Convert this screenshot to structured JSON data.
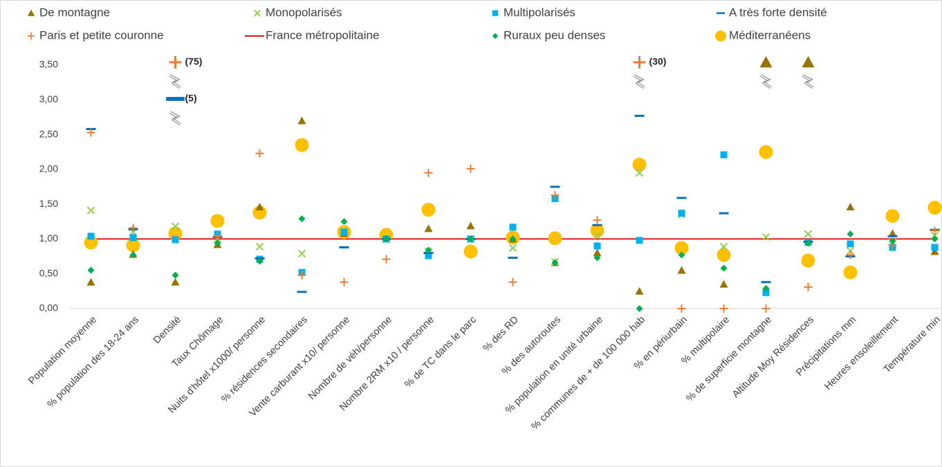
{
  "chart_data": {
    "type": "scatter",
    "categories": [
      "Population moyenne",
      "% population des 18-24 ans",
      "Densité",
      "Taux Chômage",
      "Nuits d'hôtel x1000/ personne",
      "% résidences secondaires",
      "Vente carburant x10/ personne",
      "Nombre de véh/personne",
      "Nombre 2RM x10 / personne",
      "% de TC dans le parc",
      "% des RD",
      "% des autoroutes",
      "% population en unité urbaine",
      "% communes de +  de 100 000 hab",
      "% en périurbain",
      "% multipolaire",
      "% de superficie montagne",
      "Altitude Moy Résidences",
      "Précipitations mm",
      "Heures ensoleillement",
      "Température min"
    ],
    "ylim": [
      0,
      3.5
    ],
    "yticks": [
      {
        "value": 0,
        "label": "0,00"
      },
      {
        "value": 0.5,
        "label": "0,50"
      },
      {
        "value": 1,
        "label": "1,00"
      },
      {
        "value": 1.5,
        "label": "1,50"
      },
      {
        "value": 2,
        "label": "2,00"
      },
      {
        "value": 2.5,
        "label": "2,50"
      },
      {
        "value": 3,
        "label": "3,00"
      },
      {
        "value": 3.5,
        "label": "3,50"
      }
    ],
    "grid": false,
    "series": [
      {
        "name": "De montagne",
        "color": "#997300",
        "marker": "triangle",
        "values": [
          0.38,
          0.78,
          0.38,
          0.92,
          1.46,
          2.7,
          1.08,
          1.0,
          1.15,
          1.19,
          1.0,
          0.66,
          0.8,
          0.25,
          0.55,
          0.35,
          3.51,
          3.51,
          1.46,
          1.08,
          0.82
        ]
      },
      {
        "name": "Monopolarisés",
        "color": "#92d050",
        "marker": "cross",
        "values": [
          1.41,
          1.1,
          1.18,
          1.0,
          0.89,
          0.79,
          1.1,
          1.0,
          0.82,
          1.0,
          0.87,
          0.67,
          1.05,
          1.95,
          1.35,
          0.89,
          1.03,
          1.07,
          0.83,
          0.95,
          1.05
        ]
      },
      {
        "name": "Multipolarisés",
        "color": "#00b0f0",
        "marker": "square",
        "values": [
          1.04,
          1.02,
          0.99,
          1.07,
          0.71,
          0.52,
          1.1,
          1.0,
          0.76,
          1.0,
          1.17,
          1.58,
          0.9,
          0.98,
          1.37,
          2.21,
          0.23,
          0.95,
          0.93,
          0.88,
          0.88
        ]
      },
      {
        "name": "A très forte densité",
        "color": "#0070c0",
        "marker": "dash",
        "values": [
          2.58,
          1.14,
          5,
          1.03,
          0.72,
          0.24,
          0.88,
          1.0,
          0.8,
          1.0,
          0.73,
          1.75,
          1.2,
          2.77,
          1.59,
          1.37,
          0.38,
          0.96,
          0.75,
          1.04,
          1.13
        ],
        "value_labels": [
          null,
          null,
          "(5)",
          null,
          null,
          null,
          null,
          null,
          null,
          null,
          null,
          null,
          null,
          null,
          null,
          null,
          null,
          null,
          null,
          null,
          null
        ]
      },
      {
        "name": "Paris et petite couronne",
        "color": "#ed7d31",
        "marker": "plus",
        "values": [
          2.53,
          1.16,
          75,
          1.04,
          2.23,
          0.48,
          0.38,
          0.71,
          1.95,
          2.01,
          0.38,
          1.63,
          1.27,
          30,
          0,
          0,
          0,
          0.31,
          0.77,
          0.91,
          1.12
        ],
        "value_labels": [
          null,
          null,
          "(75)",
          null,
          null,
          null,
          null,
          null,
          null,
          null,
          null,
          null,
          null,
          "(30)",
          null,
          null,
          null,
          null,
          null,
          null,
          null
        ]
      },
      {
        "name": "France métropolitaine",
        "color": "#e8141b",
        "marker": "line",
        "values": [
          1,
          1,
          1,
          1,
          1,
          1,
          1,
          1,
          1,
          1,
          1,
          1,
          1,
          1,
          1,
          1,
          1,
          1,
          1,
          1,
          1
        ]
      },
      {
        "name": "Ruraux peu denses",
        "color": "#00b050",
        "marker": "diamond",
        "values": [
          0.55,
          0.77,
          0.48,
          0.94,
          0.68,
          1.29,
          1.25,
          1.0,
          0.84,
          1.0,
          1.0,
          0.66,
          0.73,
          0,
          0.77,
          0.58,
          0.29,
          0.94,
          1.07,
          0.97,
          1.0
        ]
      },
      {
        "name": "Méditerranéens",
        "color": "#ffc000",
        "marker": "circle",
        "values": [
          0.95,
          0.91,
          1.08,
          1.26,
          1.38,
          2.35,
          1.1,
          1.06,
          1.42,
          0.82,
          1.02,
          1.01,
          1.12,
          2.07,
          0.87,
          0.77,
          2.25,
          0.69,
          0.52,
          1.33,
          1.45
        ]
      }
    ]
  }
}
